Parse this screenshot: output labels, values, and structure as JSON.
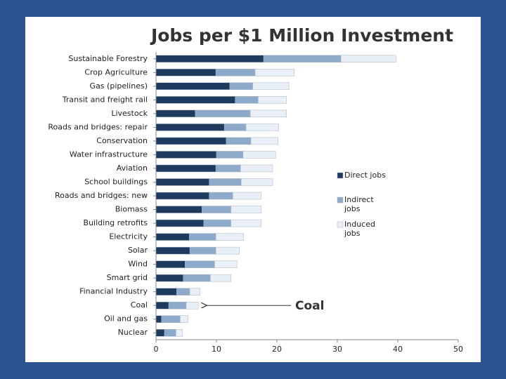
{
  "chart_data": {
    "type": "bar",
    "orientation": "horizontal",
    "stacked": true,
    "title": "Jobs per $1 Million Investment",
    "categories": [
      "Sustainable Forestry",
      "Crop Agriculture",
      "Gas (pipelines)",
      "Transit and freight rail",
      "Livestock",
      "Roads and bridges: repair",
      "Conservation",
      "Water infrastructure",
      "Aviation",
      "School buildings",
      "Roads and bridges: new",
      "Biomass",
      "Building retrofits",
      "Electricity",
      "Solar",
      "Wind",
      "Smart grid",
      "Financial Industry",
      "Coal",
      "Oil and gas",
      "Nuclear"
    ],
    "series": [
      {
        "name": "Direct jobs",
        "color": "#1f3a5f",
        "values": [
          17.8,
          9.9,
          12.2,
          13.1,
          6.5,
          11.3,
          11.6,
          10.0,
          9.9,
          8.8,
          8.8,
          7.6,
          7.9,
          5.5,
          5.6,
          4.8,
          4.5,
          3.4,
          2.1,
          0.9,
          1.4
        ]
      },
      {
        "name": "Indirect jobs",
        "color": "#8eaacb",
        "values": [
          12.8,
          6.5,
          3.8,
          3.8,
          9.1,
          3.6,
          4.1,
          4.4,
          4.1,
          5.3,
          3.9,
          4.8,
          4.5,
          4.4,
          4.3,
          4.9,
          4.5,
          2.2,
          2.9,
          3.1,
          1.9
        ]
      },
      {
        "name": "Induced jobs",
        "color": "#e8eff7",
        "values": [
          9.1,
          6.5,
          6.0,
          4.7,
          6.0,
          5.4,
          4.5,
          5.4,
          5.3,
          5.2,
          4.7,
          5.0,
          5.0,
          4.6,
          3.9,
          3.7,
          3.4,
          1.7,
          2.0,
          1.3,
          1.1
        ]
      }
    ],
    "xlim": [
      0,
      50
    ],
    "xticks": [
      0,
      10,
      20,
      30,
      40,
      50
    ],
    "legend": "right",
    "annotation": "Coal",
    "annotation_category": "Coal"
  }
}
